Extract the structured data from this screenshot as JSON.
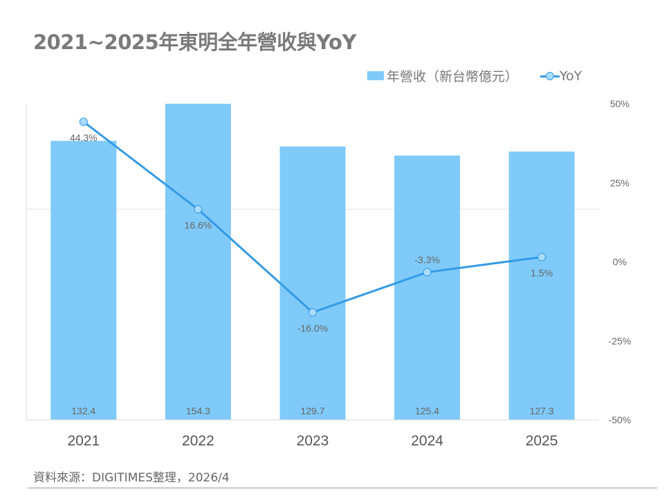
{
  "chart_data": {
    "type": "bar+line",
    "title": "2021~2025年東明全年營收與YoY",
    "categories": [
      "2021",
      "2022",
      "2023",
      "2024",
      "2025"
    ],
    "series": [
      {
        "name": "年營收（新台幣億元）",
        "type": "bar",
        "axis": "left",
        "values": [
          132.4,
          154.3,
          129.7,
          125.4,
          127.3
        ],
        "color": "#7fcaf9"
      },
      {
        "name": "YoY",
        "type": "line",
        "axis": "right",
        "values": [
          44.3,
          16.6,
          -16.0,
          -3.3,
          1.5
        ],
        "labels": [
          "44.3%",
          "16.6%",
          "-16.0%",
          "-3.3%",
          "1.5%"
        ],
        "color": "#349ae6"
      }
    ],
    "left_axis": {
      "ylim": [
        0,
        150
      ],
      "tick_labels_shown": false
    },
    "right_axis": {
      "ylim": [
        -50,
        50
      ],
      "ticks": [
        "50%",
        "25%",
        "0%",
        "-25%",
        "-50%"
      ]
    },
    "grid": true,
    "legend": "top-right"
  },
  "source": "資料來源：DIGITIMES整理，2026/4"
}
